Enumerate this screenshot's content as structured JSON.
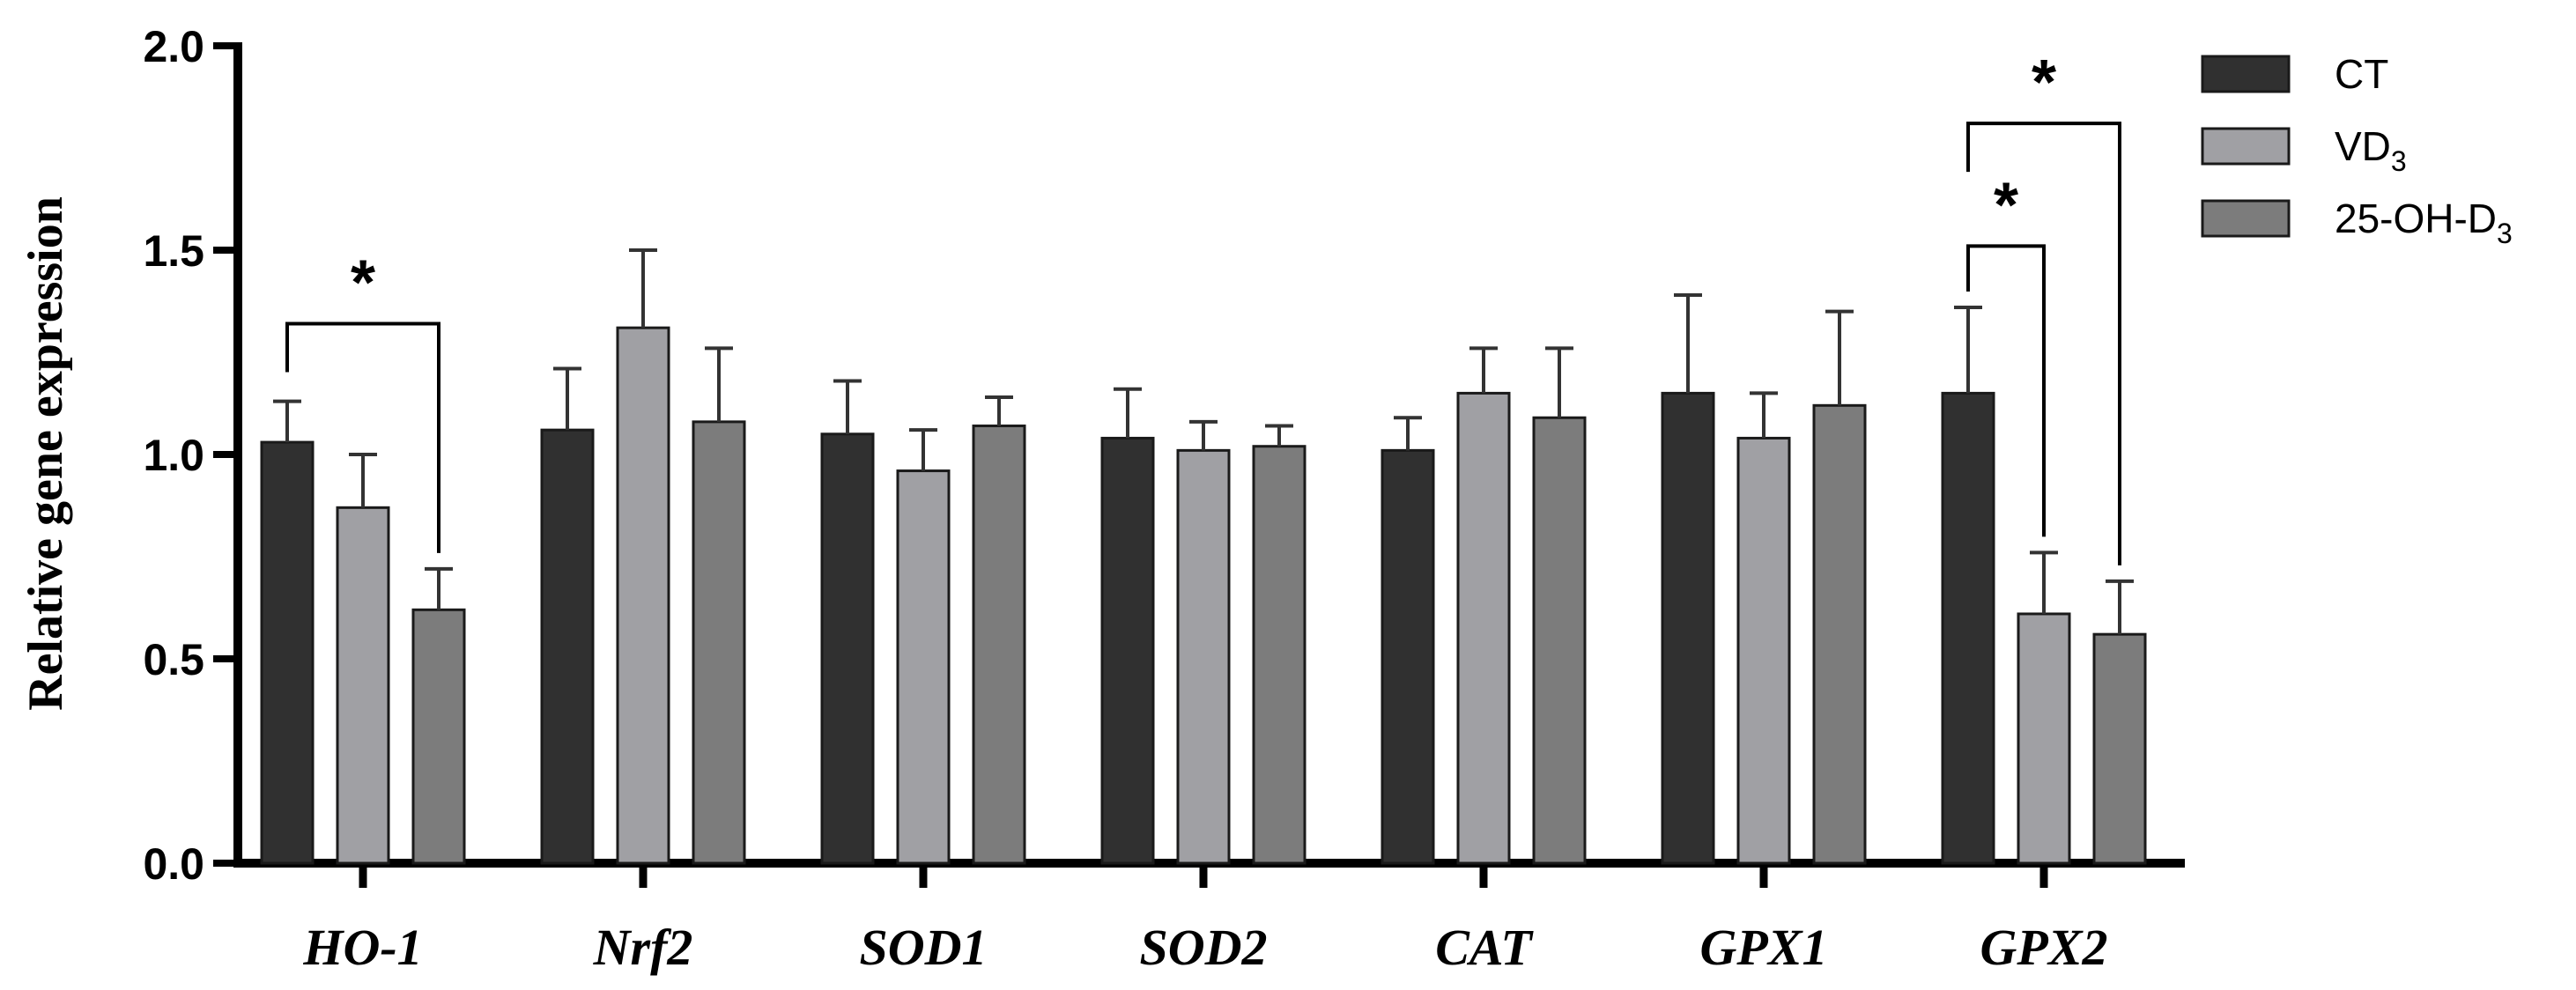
{
  "chart_data": {
    "type": "bar",
    "title": "",
    "xlabel": "",
    "ylabel": "Relative gene expression",
    "ylim": [
      0,
      2.0
    ],
    "yticks": [
      "0.0",
      "0.5",
      "1.0",
      "1.5",
      "2.0"
    ],
    "categories": [
      "HO-1",
      "Nrf2",
      "SOD1",
      "SOD2",
      "CAT",
      "GPX1",
      "GPX2"
    ],
    "series": [
      {
        "name": "CT",
        "label_base": "CT",
        "label_sub": "",
        "color": "#303030",
        "values": [
          1.03,
          1.06,
          1.05,
          1.04,
          1.01,
          1.15,
          1.15
        ],
        "errors": [
          0.1,
          0.15,
          0.13,
          0.12,
          0.08,
          0.24,
          0.21
        ]
      },
      {
        "name": "VD3",
        "label_base": "VD",
        "label_sub": "3",
        "color": "#a0a0a4",
        "values": [
          0.87,
          1.31,
          0.96,
          1.01,
          1.15,
          1.04,
          0.61
        ],
        "errors": [
          0.13,
          0.19,
          0.1,
          0.07,
          0.11,
          0.11,
          0.15
        ]
      },
      {
        "name": "25-OH-D3",
        "label_base": "25-OH-D",
        "label_sub": "3",
        "color": "#7c7c7c",
        "values": [
          0.62,
          1.08,
          1.07,
          1.02,
          1.09,
          1.12,
          0.56
        ],
        "errors": [
          0.1,
          0.18,
          0.07,
          0.05,
          0.17,
          0.23,
          0.13
        ]
      }
    ],
    "significance": [
      {
        "category": 0,
        "from_series": 0,
        "to_series": 2,
        "label": "*",
        "bracket_y": 1.32
      },
      {
        "category": 6,
        "from_series": 0,
        "to_series": 1,
        "label": "*",
        "bracket_y": 1.51
      },
      {
        "category": 6,
        "from_series": 0,
        "to_series": 2,
        "label": "*",
        "bracket_y": 1.81
      }
    ],
    "legend_position": "top-right",
    "grid": false
  }
}
